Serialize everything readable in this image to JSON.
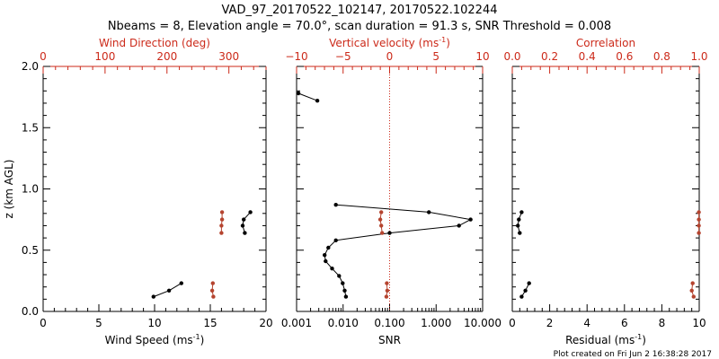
{
  "title_line1": "VAD_97_20170522_102147, 20170522.102244",
  "title_line2": "Nbeams = 8, Elevation angle = 70.0°, scan duration = 91.3 s, SNR Threshold = 0.008",
  "footer": "Plot created on Fri Jun  2 16:38:28 2017",
  "colors": {
    "axis": "#000000",
    "accent": "#cc2a1a",
    "marker_red": "#b5442f",
    "line_black": "#000000"
  },
  "chart_data": [
    {
      "type": "line",
      "panel": "wind",
      "ylabel": "z (km AGL)",
      "ylim": [
        0,
        2
      ],
      "y_ticks": [
        "0.0",
        "0.5",
        "1.0",
        "1.5",
        "2.0"
      ],
      "xlabel_bottom": "Wind Speed (ms",
      "xlabel_bottom_sup": "-1",
      "xlabel_bottom_end": ")",
      "xlim_bottom": [
        0,
        20
      ],
      "x_ticks_bottom": [
        "0",
        "5",
        "10",
        "15",
        "20"
      ],
      "xlabel_top": "Wind Direction (deg)",
      "xlim_top": [
        0,
        360
      ],
      "x_ticks_top": [
        "0",
        "100",
        "200",
        "300"
      ],
      "series": [
        {
          "axis": "bottom",
          "color": "black",
          "segments": [
            [
              [
                9.9,
                0.12
              ],
              [
                11.3,
                0.17
              ],
              [
                12.4,
                0.23
              ]
            ],
            [
              [
                18.1,
                0.64
              ],
              [
                17.9,
                0.7
              ],
              [
                18.0,
                0.75
              ],
              [
                18.6,
                0.81
              ]
            ]
          ]
        },
        {
          "axis": "top",
          "color": "red",
          "segments": [
            [
              [
                275,
                0.12
              ],
              [
                273,
                0.17
              ],
              [
                274,
                0.23
              ]
            ],
            [
              [
                288,
                0.64
              ],
              [
                288,
                0.7
              ],
              [
                289,
                0.75
              ],
              [
                289,
                0.81
              ]
            ]
          ]
        }
      ]
    },
    {
      "type": "line",
      "panel": "snr",
      "ylim": [
        0,
        2
      ],
      "xlabel_bottom": "SNR",
      "x_scale": "log",
      "xlim_bottom": [
        0.001,
        10
      ],
      "x_ticks_bottom": [
        "0.001",
        "0.010",
        "0.100",
        "1.000",
        "10.000"
      ],
      "xlabel_top": "Vertical velocity (ms",
      "xlabel_top_sup": "-1",
      "xlabel_top_end": ")",
      "xlim_top": [
        -10,
        10
      ],
      "x_ticks_top": [
        "−10",
        "−5",
        "0",
        "5",
        "10"
      ],
      "reference_line_top": 0,
      "series": [
        {
          "axis": "bottom",
          "color": "black",
          "segments": [
            [
              [
                0.0115,
                0.12
              ],
              [
                0.0108,
                0.17
              ],
              [
                0.0098,
                0.23
              ],
              [
                0.0082,
                0.29
              ],
              [
                0.0058,
                0.35
              ],
              [
                0.0042,
                0.41
              ],
              [
                0.004,
                0.46
              ],
              [
                0.0048,
                0.52
              ],
              [
                0.007,
                0.58
              ],
              [
                0.1,
                0.64
              ],
              [
                3.1,
                0.7
              ],
              [
                5.5,
                0.75
              ],
              [
                0.7,
                0.81
              ],
              [
                0.007,
                0.87
              ]
            ],
            [
              [
                0.0028,
                1.72
              ],
              [
                0.0011,
                1.78
              ]
            ]
          ]
        },
        {
          "axis": "top",
          "color": "red",
          "segments": [
            [
              [
                -0.35,
                0.12
              ],
              [
                -0.25,
                0.17
              ],
              [
                -0.3,
                0.23
              ]
            ],
            [
              [
                -0.8,
                0.64
              ],
              [
                -0.9,
                0.7
              ],
              [
                -1.0,
                0.75
              ],
              [
                -0.9,
                0.81
              ]
            ]
          ]
        }
      ]
    },
    {
      "type": "line",
      "panel": "residual",
      "ylim": [
        0,
        2
      ],
      "xlabel_bottom": "Residual (ms",
      "xlabel_bottom_sup": "-1",
      "xlabel_bottom_end": ")",
      "xlim_bottom": [
        0,
        10
      ],
      "x_ticks_bottom": [
        "0",
        "2",
        "4",
        "6",
        "8",
        "10"
      ],
      "xlabel_top": "Correlation",
      "xlim_top": [
        0,
        1
      ],
      "x_ticks_top": [
        "0.0",
        "0.2",
        "0.4",
        "0.6",
        "0.8",
        "1.0"
      ],
      "series": [
        {
          "axis": "bottom",
          "color": "black",
          "segments": [
            [
              [
                0.5,
                0.12
              ],
              [
                0.7,
                0.17
              ],
              [
                0.9,
                0.23
              ]
            ],
            [
              [
                0.4,
                0.64
              ],
              [
                0.3,
                0.7
              ],
              [
                0.35,
                0.75
              ],
              [
                0.5,
                0.81
              ]
            ]
          ]
        },
        {
          "axis": "top",
          "color": "red",
          "segments": [
            [
              [
                0.97,
                0.12
              ],
              [
                0.96,
                0.17
              ],
              [
                0.965,
                0.23
              ]
            ],
            [
              [
                0.998,
                0.64
              ],
              [
                0.998,
                0.7
              ],
              [
                0.998,
                0.75
              ],
              [
                0.998,
                0.81
              ]
            ]
          ]
        }
      ]
    }
  ]
}
